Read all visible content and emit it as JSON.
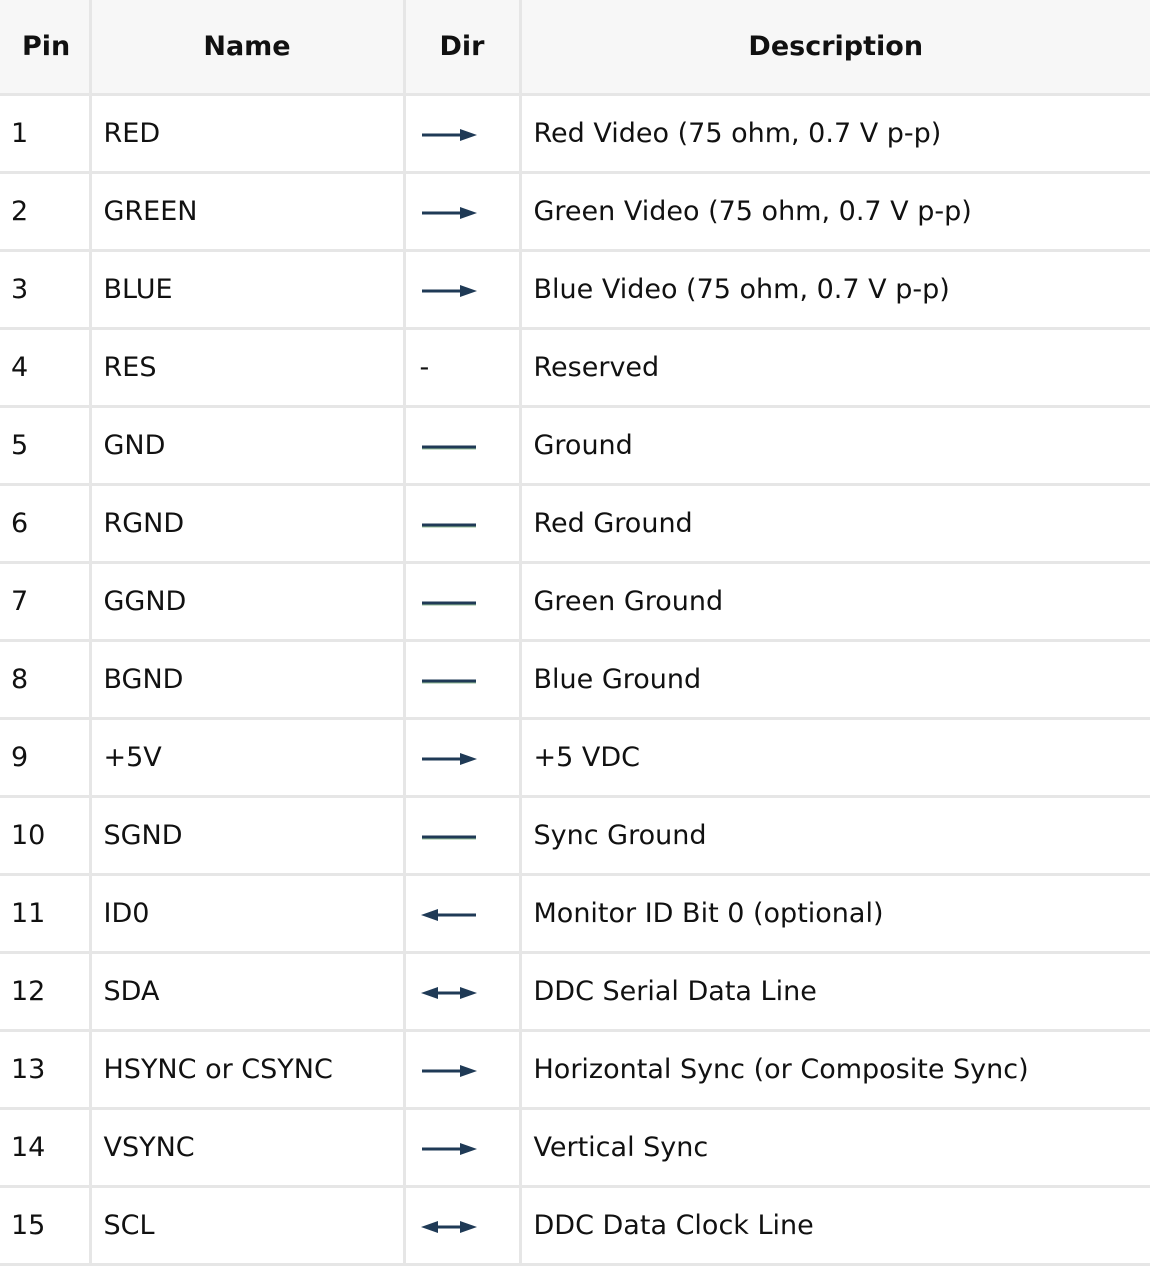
{
  "headers": {
    "pin": "Pin",
    "name": "Name",
    "dir": "Dir",
    "description": "Description"
  },
  "colors": {
    "arrow": "#1f3a56",
    "arrow_accent": "#2e7d32",
    "border": "#e6e6e6",
    "header_bg": "#f7f7f7"
  },
  "rows": [
    {
      "pin": "1",
      "name": "RED",
      "dir": "arrow-right-icon",
      "description": "Red Video (75 ohm, 0.7 V p-p)"
    },
    {
      "pin": "2",
      "name": "GREEN",
      "dir": "arrow-right-icon",
      "description": "Green Video (75 ohm, 0.7 V p-p)"
    },
    {
      "pin": "3",
      "name": "BLUE",
      "dir": "arrow-right-icon",
      "description": "Blue Video (75 ohm, 0.7 V p-p)"
    },
    {
      "pin": "4",
      "name": "RES",
      "dir": "-",
      "description": "Reserved"
    },
    {
      "pin": "5",
      "name": "GND",
      "dir": "line-icon",
      "description": "Ground"
    },
    {
      "pin": "6",
      "name": "RGND",
      "dir": "line-icon",
      "description": "Red Ground"
    },
    {
      "pin": "7",
      "name": "GGND",
      "dir": "line-icon",
      "description": "Green Ground"
    },
    {
      "pin": "8",
      "name": "BGND",
      "dir": "line-icon",
      "description": "Blue Ground"
    },
    {
      "pin": "9",
      "name": "+5V",
      "dir": "arrow-right-icon",
      "description": "+5 VDC"
    },
    {
      "pin": "10",
      "name": "SGND",
      "dir": "line-icon",
      "description": "Sync Ground"
    },
    {
      "pin": "11",
      "name": "ID0",
      "dir": "arrow-left-icon",
      "description": "Monitor ID Bit 0 (optional)"
    },
    {
      "pin": "12",
      "name": "SDA",
      "dir": "arrow-both-icon",
      "description": "DDC Serial Data Line"
    },
    {
      "pin": "13",
      "name": "HSYNC or CSYNC",
      "dir": "arrow-right-icon",
      "description": "Horizontal Sync (or Composite Sync)"
    },
    {
      "pin": "14",
      "name": "VSYNC",
      "dir": "arrow-right-icon",
      "description": "Vertical Sync"
    },
    {
      "pin": "15",
      "name": "SCL",
      "dir": "arrow-both-icon",
      "description": "DDC Data Clock Line"
    }
  ]
}
